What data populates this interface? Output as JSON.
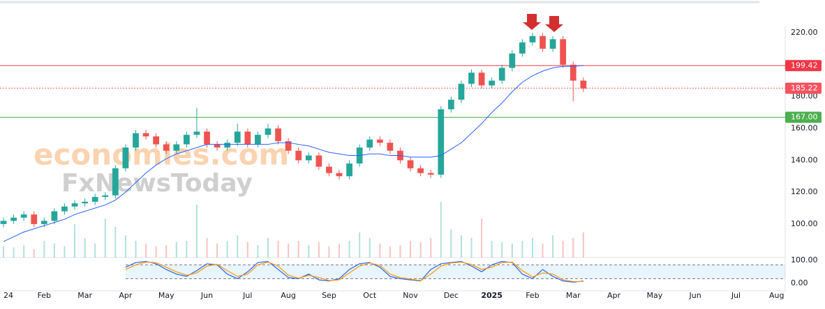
{
  "chart_data": {
    "type": "candlestick",
    "watermark": [
      "economies.com",
      "FxNewsToday"
    ],
    "xlim": [
      -0.086,
      19.21
    ],
    "xticks": [
      {
        "value": 0,
        "label": "24"
      },
      {
        "value": 1,
        "label": "Feb"
      },
      {
        "value": 2,
        "label": "Mar"
      },
      {
        "value": 3,
        "label": "Apr"
      },
      {
        "value": 4,
        "label": "May"
      },
      {
        "value": 5,
        "label": "Jun"
      },
      {
        "value": 6,
        "label": "Jul"
      },
      {
        "value": 7,
        "label": "Aug"
      },
      {
        "value": 8,
        "label": "Sep"
      },
      {
        "value": 9,
        "label": "Oct"
      },
      {
        "value": 10,
        "label": "Nov"
      },
      {
        "value": 11,
        "label": "Dec"
      },
      {
        "value": 12,
        "label": "2025"
      },
      {
        "value": 13,
        "label": "Feb"
      },
      {
        "value": 14,
        "label": "Mar"
      },
      {
        "value": 15,
        "label": "Apr"
      },
      {
        "value": 16,
        "label": "May"
      },
      {
        "value": 17,
        "label": "Jun"
      },
      {
        "value": 18,
        "label": "Jul"
      },
      {
        "value": 19,
        "label": "Aug"
      }
    ],
    "ylim": [
      79,
      224
    ],
    "yticks": [
      {
        "value": 100,
        "label": "100.00"
      },
      {
        "value": 120,
        "label": "120.00"
      },
      {
        "value": 140,
        "label": "140.00"
      },
      {
        "value": 160,
        "label": "160.00"
      },
      {
        "value": 180,
        "label": "180.00"
      },
      {
        "value": 220,
        "label": "220.00"
      }
    ],
    "up_color": "#26a69a",
    "down_color": "#ef5350",
    "candles": {
      "x": [
        0,
        0.25,
        0.5,
        0.75,
        1,
        1.25,
        1.5,
        1.75,
        2,
        2.25,
        2.5,
        2.75,
        3,
        3.25,
        3.5,
        3.75,
        4,
        4.25,
        4.5,
        4.75,
        5,
        5.25,
        5.5,
        5.75,
        6,
        6.25,
        6.5,
        6.75,
        7,
        7.25,
        7.5,
        7.75,
        8,
        8.25,
        8.5,
        8.75,
        9,
        9.25,
        9.5,
        9.75,
        10,
        10.25,
        10.5,
        10.75,
        11,
        11.25,
        11.5,
        11.75,
        12,
        12.25,
        12.5,
        12.75,
        13,
        13.25,
        13.5,
        13.75,
        14,
        14.25
      ],
      "open": [
        100,
        102,
        104,
        106,
        100,
        102,
        108,
        111,
        113,
        114,
        117,
        118,
        135,
        148,
        157,
        155,
        150,
        146,
        150,
        156,
        158,
        150,
        148,
        151,
        158,
        150,
        156,
        160,
        152,
        146,
        140,
        143,
        136,
        132,
        130,
        138,
        148,
        153,
        151,
        146,
        140,
        135,
        132,
        131,
        172,
        178,
        188,
        195,
        187,
        190,
        198,
        207,
        214,
        218,
        210,
        216,
        200,
        190
      ],
      "high": [
        104,
        106,
        108,
        108,
        104,
        110,
        113,
        115,
        116,
        119,
        120,
        137,
        150,
        159,
        159,
        157,
        152,
        152,
        158,
        173,
        160,
        152,
        153,
        163,
        160,
        158,
        163,
        162,
        154,
        148,
        145,
        145,
        138,
        134,
        140,
        150,
        155,
        155,
        153,
        148,
        142,
        137,
        134,
        174,
        180,
        190,
        197,
        197,
        192,
        200,
        209,
        216,
        220,
        220,
        218,
        218,
        202,
        192
      ],
      "low": [
        98,
        100,
        102,
        98,
        98,
        100,
        106,
        109,
        111,
        112,
        115,
        116,
        133,
        146,
        153,
        148,
        144,
        144,
        148,
        154,
        148,
        146,
        146,
        149,
        148,
        148,
        154,
        150,
        144,
        138,
        138,
        134,
        130,
        128,
        128,
        136,
        146,
        149,
        144,
        138,
        133,
        130,
        129,
        129,
        170,
        176,
        186,
        185,
        185,
        188,
        196,
        205,
        212,
        208,
        208,
        198,
        177,
        183
      ],
      "close": [
        102,
        104,
        106,
        100,
        102,
        108,
        111,
        113,
        114,
        117,
        118,
        135,
        148,
        157,
        155,
        150,
        146,
        150,
        156,
        158,
        150,
        148,
        151,
        158,
        150,
        156,
        160,
        152,
        146,
        140,
        143,
        136,
        132,
        130,
        138,
        148,
        153,
        151,
        146,
        140,
        135,
        132,
        131,
        172,
        178,
        188,
        195,
        187,
        190,
        198,
        207,
        214,
        218,
        210,
        216,
        200,
        190,
        185
      ]
    },
    "moving_average": {
      "color": "#2962ff",
      "values": [
        89,
        92,
        95,
        97,
        99,
        101,
        103,
        106,
        108,
        110,
        112,
        115,
        120,
        126,
        132,
        137,
        141,
        144,
        146,
        148,
        150,
        150,
        150,
        150,
        150,
        150,
        150,
        151,
        151,
        150,
        149,
        147,
        145,
        144,
        143,
        143,
        144,
        144,
        143,
        143,
        142,
        142,
        142,
        143,
        147,
        151,
        157,
        163,
        170,
        176,
        183,
        189,
        193,
        196,
        198,
        199,
        199,
        199.5
      ]
    },
    "volume": {
      "vlim": [
        0,
        100
      ],
      "values": [
        20,
        18,
        22,
        15,
        30,
        25,
        20,
        60,
        35,
        25,
        70,
        55,
        40,
        30,
        25,
        20,
        22,
        28,
        30,
        95,
        35,
        25,
        30,
        40,
        28,
        22,
        35,
        30,
        25,
        30,
        22,
        28,
        20,
        25,
        30,
        45,
        35,
        25,
        20,
        22,
        30,
        28,
        35,
        100,
        50,
        40,
        35,
        70,
        30,
        28,
        25,
        30,
        35,
        25,
        40,
        30,
        35,
        45
      ]
    },
    "levels": [
      {
        "value": 199.42,
        "label": "199.42",
        "color": "#f23645"
      },
      {
        "value": 185.22,
        "label": "185.22",
        "color": "#f7525f"
      },
      {
        "value": 167,
        "label": "167.00",
        "color": "#4caf50"
      }
    ],
    "oscillator": {
      "ylim": [
        -33,
        112
      ],
      "yticks": [
        {
          "value": 100,
          "label": "100.00"
        },
        {
          "value": 0,
          "label": "0.00"
        }
      ],
      "bands": [
        20,
        80
      ],
      "series": [
        {
          "color": "#2962ff",
          "values": [
            null,
            null,
            null,
            null,
            null,
            null,
            null,
            null,
            null,
            null,
            null,
            null,
            70,
            90,
            95,
            85,
            60,
            40,
            30,
            55,
            85,
            80,
            40,
            20,
            50,
            90,
            95,
            60,
            25,
            20,
            40,
            15,
            10,
            20,
            60,
            85,
            90,
            70,
            30,
            20,
            15,
            10,
            60,
            85,
            90,
            95,
            75,
            50,
            80,
            95,
            90,
            40,
            20,
            60,
            30,
            10,
            5,
            10
          ]
        },
        {
          "color": "#ff9800",
          "values": [
            null,
            null,
            null,
            null,
            null,
            null,
            null,
            null,
            null,
            null,
            null,
            null,
            60,
            80,
            92,
            90,
            70,
            50,
            35,
            45,
            75,
            82,
            55,
            30,
            40,
            80,
            92,
            75,
            35,
            22,
            35,
            25,
            12,
            15,
            45,
            75,
            88,
            78,
            40,
            25,
            18,
            12,
            40,
            75,
            88,
            92,
            82,
            60,
            70,
            90,
            92,
            55,
            28,
            45,
            40,
            15,
            8,
            8
          ]
        }
      ]
    }
  }
}
